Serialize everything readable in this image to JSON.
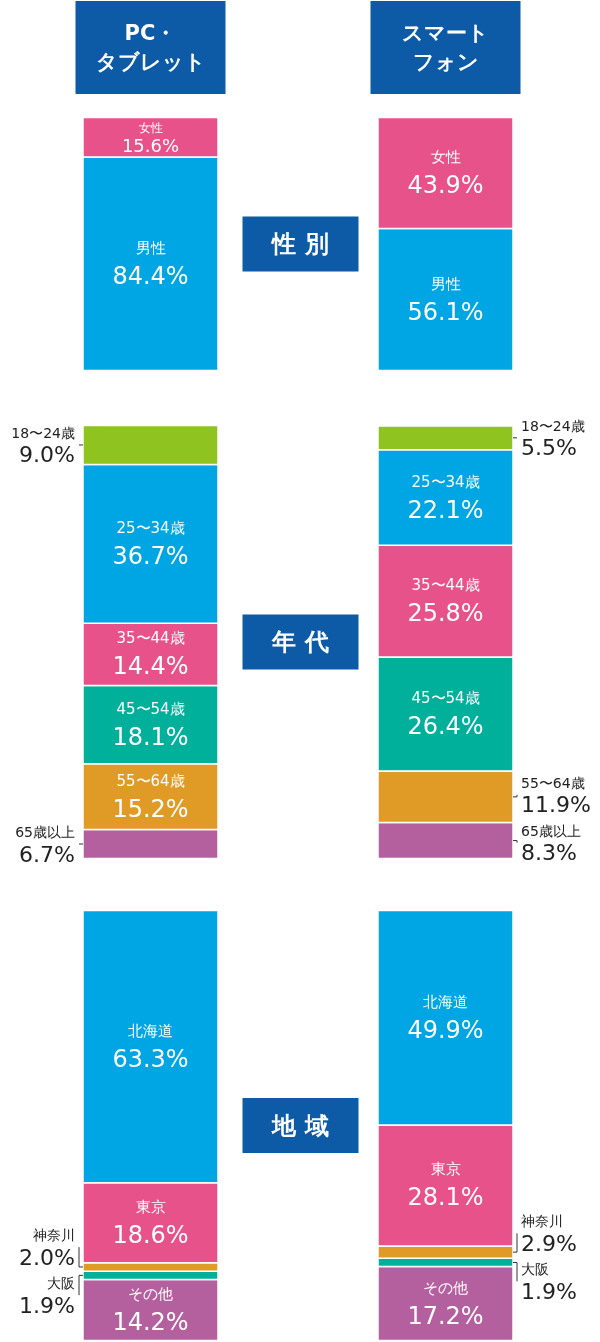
{
  "chart_data": [
    {
      "type": "bar",
      "stacked": true,
      "title": "性 別",
      "categories": [
        "PC・タブレット",
        "スマートフォン"
      ],
      "tick_labels": "x",
      "ylim": [
        0,
        100
      ],
      "series": [
        {
          "name": "男性",
          "color": "#00a5e3",
          "values": [
            84.4,
            56.1
          ],
          "value_labels": [
            "84.4%",
            "56.1%"
          ]
        },
        {
          "name": "女性",
          "color": "#e8528a",
          "values": [
            15.6,
            43.9
          ],
          "value_labels": [
            "15.6%",
            "43.9%"
          ]
        }
      ]
    },
    {
      "type": "bar",
      "stacked": true,
      "title": "年 代",
      "categories": [
        "PC・タブレット",
        "スマートフォン"
      ],
      "tick_labels": false,
      "ylim": [
        0,
        100.1
      ],
      "series": [
        {
          "name": "65歳以上",
          "color": "#b5609e",
          "values": [
            6.7,
            8.3
          ],
          "value_labels": [
            "6.7%",
            "8.3%"
          ]
        },
        {
          "name": "55〜64歳",
          "color": "#e09b27",
          "values": [
            15.2,
            11.9
          ],
          "value_labels": [
            "15.2%",
            "11.9%"
          ]
        },
        {
          "name": "45〜54歳",
          "color": "#00b09b",
          "values": [
            18.1,
            26.4
          ],
          "value_labels": [
            "18.1%",
            "26.4%"
          ]
        },
        {
          "name": "35〜44歳",
          "color": "#e8528a",
          "values": [
            14.4,
            25.8
          ],
          "value_labels": [
            "14.4%",
            "25.8%"
          ]
        },
        {
          "name": "25〜34歳",
          "color": "#00a5e3",
          "values": [
            36.7,
            22.1
          ],
          "value_labels": [
            "36.7%",
            "22.1%"
          ]
        },
        {
          "name": "18〜24歳",
          "color": "#8fc31f",
          "values": [
            9.0,
            5.5
          ],
          "value_labels": [
            "9.0%",
            "5.5%"
          ]
        }
      ]
    },
    {
      "type": "bar",
      "stacked": true,
      "title": "地 域",
      "categories": [
        "PC・タブレット",
        "スマートフォン"
      ],
      "tick_labels": false,
      "ylim": [
        0,
        100
      ],
      "series": [
        {
          "name": "その他",
          "color": "#b5609e",
          "values": [
            14.2,
            17.2
          ],
          "value_labels": [
            "14.2%",
            "17.2%"
          ]
        },
        {
          "name": "大阪",
          "color": "#00b09b",
          "values": [
            1.9,
            1.9
          ],
          "value_labels": [
            "1.9%",
            "1.9%"
          ]
        },
        {
          "name": "神奈川",
          "color": "#e09b27",
          "values": [
            2.0,
            2.9
          ],
          "value_labels": [
            "2.0%",
            "2.9%"
          ]
        },
        {
          "name": "東京",
          "color": "#e8528a",
          "values": [
            18.6,
            28.1
          ],
          "value_labels": [
            "18.6%",
            "28.1%"
          ]
        },
        {
          "name": "北海道",
          "color": "#00a5e3",
          "values": [
            63.3,
            49.9
          ],
          "value_labels": [
            "63.3%",
            "49.9%"
          ]
        }
      ]
    }
  ]
}
